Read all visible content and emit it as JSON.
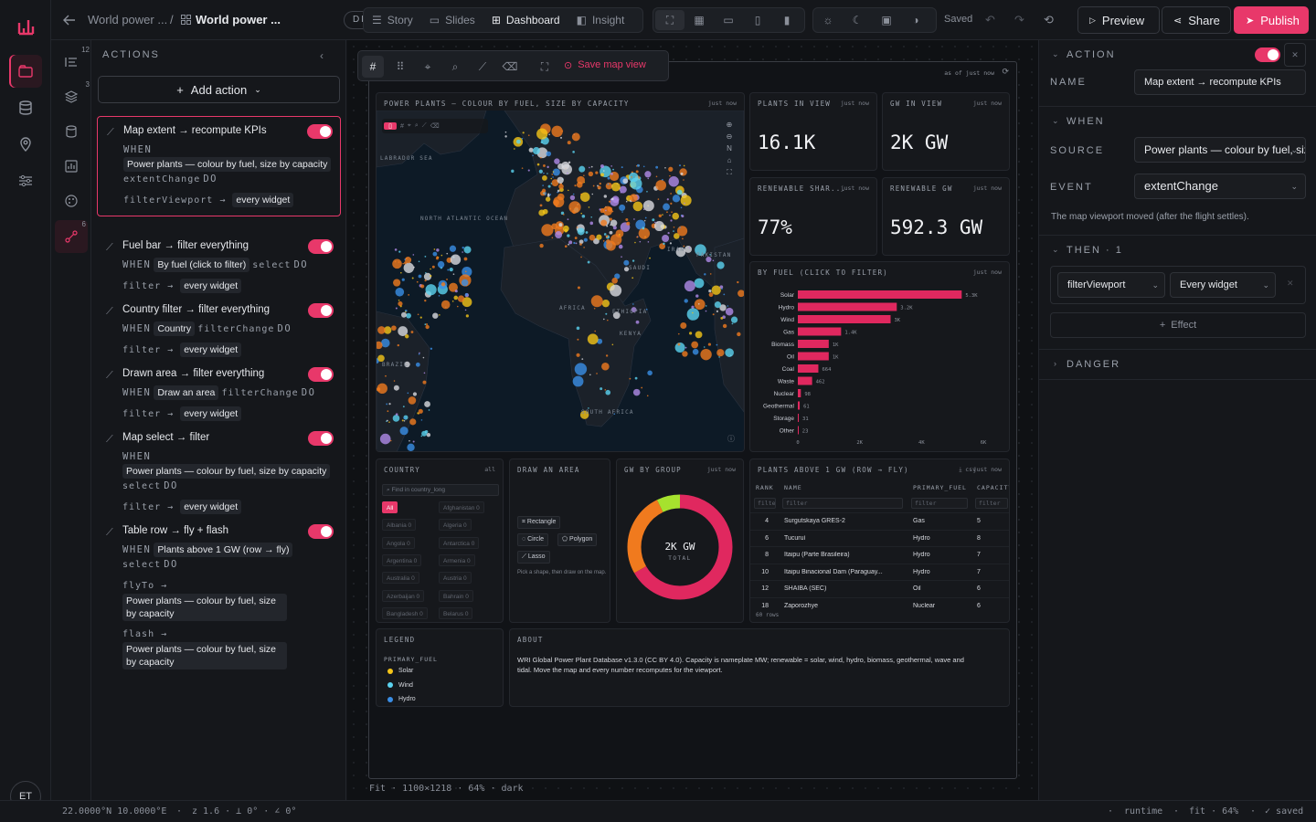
{
  "topbar": {
    "back_label": "World power ...",
    "doc_title": "World power ...",
    "status": "DRAFT",
    "views": [
      {
        "label": "Story"
      },
      {
        "label": "Slides"
      },
      {
        "label": "Dashboard",
        "active": true
      },
      {
        "label": "Insight"
      }
    ],
    "saved": "Saved",
    "preview": "Preview",
    "share": "Share",
    "publish": "Publish"
  },
  "user": {
    "initials": "ET"
  },
  "iconcol": {
    "badge_a": "12",
    "badge_b": "3",
    "badge_c": "6"
  },
  "actions": {
    "header": "ACTIONS",
    "add_label": "Add action",
    "cards": [
      {
        "title": "Map extent → recompute KPIs",
        "when": "WHEN",
        "chip": "Power plants — colour by fuel, size by capacity",
        "event": "extentChange",
        "do": "DO",
        "verb": "filterViewport",
        "target": "every widget"
      },
      {
        "title": "Fuel bar → filter everything",
        "when": "WHEN",
        "chip": "By fuel (click to filter)",
        "event": "select",
        "do": "DO",
        "verb": "filter",
        "target": "every widget"
      },
      {
        "title": "Country filter → filter everything",
        "when": "WHEN",
        "chip": "Country",
        "event": "filterChange",
        "do": "DO",
        "verb": "filter",
        "target": "every widget"
      },
      {
        "title": "Drawn area → filter everything",
        "when": "WHEN",
        "chip": "Draw an area",
        "event": "filterChange",
        "do": "DO",
        "verb": "filter",
        "target": "every widget"
      },
      {
        "title": "Map select → filter",
        "when": "WHEN",
        "chip": "Power plants — colour by fuel, size by capacity",
        "event": "select",
        "do": "DO",
        "verb": "filter",
        "target": "every widget"
      },
      {
        "title": "Table row → fly + flash",
        "when": "WHEN",
        "chip": "Plants above 1 GW (row → fly)",
        "event": "select",
        "do": "DO",
        "verb": "flyTo",
        "target": "Power plants — colour by fuel, size by capacity",
        "verb2": "flash",
        "target2": "Power plants — colour by fuel, size by capacity"
      }
    ]
  },
  "canvas": {
    "save_map_view": "Save map view",
    "as_of": "as of just now",
    "footer": "Fit · 1100×1218 · 64% · dark"
  },
  "map": {
    "title": "POWER PLANTS — COLOUR BY FUEL, SIZE BY CAPACITY",
    "updated": "just now",
    "labels": [
      "LABRADOR SEA",
      "NORTH ATLANTIC OCEAN",
      "AFRICA",
      "ETHIOPIA",
      "KENYA",
      "BRAZIL",
      "SOUTH AFRICA",
      "IRAN",
      "SAUDI",
      "PAKISTAN"
    ]
  },
  "kpis": [
    {
      "label": "PLANTS IN VIEW",
      "updated": "just now",
      "value": "16.1K"
    },
    {
      "label": "GW IN VIEW",
      "updated": "just now",
      "value": "2K GW"
    },
    {
      "label": "RENEWABLE SHAR...",
      "updated": "just now",
      "value": "77%"
    },
    {
      "label": "RENEWABLE GW",
      "updated": "just now",
      "value": "592.3 GW"
    }
  ],
  "fuelchart": {
    "title": "BY FUEL (CLICK TO FILTER)",
    "updated": "just now"
  },
  "chart_data": {
    "type": "bar",
    "orientation": "horizontal",
    "title": "BY FUEL (CLICK TO FILTER)",
    "categories": [
      "Solar",
      "Hydro",
      "Wind",
      "Gas",
      "Biomass",
      "Oil",
      "Coal",
      "Waste",
      "Nuclear",
      "Geothermal",
      "Storage",
      "Other"
    ],
    "values": [
      5300,
      3200,
      3000,
      1400,
      1000,
      1000,
      664,
      462,
      98,
      61,
      31,
      23
    ],
    "value_labels": [
      "5.3K",
      "3.2K",
      "3K",
      "1.4K",
      "1K",
      "1K",
      "664",
      "462",
      "98",
      "61",
      "31",
      "23"
    ],
    "xticks": [
      0,
      2000,
      4000,
      6000
    ],
    "xtick_labels": [
      "0",
      "2K",
      "4K",
      "6K"
    ],
    "xlim": [
      0,
      6000
    ],
    "color": "#e0285f"
  },
  "country": {
    "title": "COUNTRY",
    "all_tag": "all",
    "placeholder": "Find in country_long",
    "items": [
      {
        "name": "All",
        "count": ""
      },
      {
        "name": "Afghanistan",
        "count": "0"
      },
      {
        "name": "Albania",
        "count": "0"
      },
      {
        "name": "Algeria",
        "count": "0"
      },
      {
        "name": "Angola",
        "count": "0"
      },
      {
        "name": "Antarctica",
        "count": "0"
      },
      {
        "name": "Argentina",
        "count": "0"
      },
      {
        "name": "Armenia",
        "count": "0"
      },
      {
        "name": "Australia",
        "count": "0"
      },
      {
        "name": "Austria",
        "count": "0"
      },
      {
        "name": "Azerbaijan",
        "count": "0"
      },
      {
        "name": "Bahrain",
        "count": "0"
      },
      {
        "name": "Bangladesh",
        "count": "0"
      },
      {
        "name": "Belarus",
        "count": "0"
      }
    ]
  },
  "draw": {
    "title": "DRAW AN AREA",
    "rect": "Rectangle",
    "circle": "Circle",
    "polygon": "Polygon",
    "lasso": "Lasso",
    "hint": "Pick a shape, then draw on the map."
  },
  "donut": {
    "title": "GW BY GROUP",
    "updated": "just now",
    "value": "2K GW",
    "sub": "TOTAL"
  },
  "table": {
    "title": "PLANTS ABOVE 1 GW (ROW → FLY)",
    "csv": "csv",
    "updated": "just now",
    "headers": [
      "RANK",
      "NAME",
      "PRIMARY_FUEL",
      "CAPACITY"
    ],
    "filter_placeholder": "filter",
    "rows": [
      [
        "4",
        "Surgutskaya GRES-2",
        "Gas",
        "5"
      ],
      [
        "6",
        "Tucuruí",
        "Hydro",
        "8"
      ],
      [
        "8",
        "Itaipu (Parte Brasileira)",
        "Hydro",
        "7"
      ],
      [
        "10",
        "Itaipu Binacional Dam (Paraguay...",
        "Hydro",
        "7"
      ],
      [
        "12",
        "SHAIBA (SEC)",
        "Oil",
        "6"
      ],
      [
        "18",
        "Zaporozhye",
        "Nuclear",
        "6"
      ]
    ],
    "footer": "60 rows"
  },
  "legend": {
    "title": "LEGEND",
    "sub": "PRIMARY_FUEL",
    "items": [
      {
        "label": "Solar",
        "color": "#f5c518"
      },
      {
        "label": "Wind",
        "color": "#5bd3f0"
      },
      {
        "label": "Hydro",
        "color": "#3a8ee6"
      }
    ]
  },
  "about": {
    "title": "ABOUT",
    "text": "WRI Global Power Plant Database v1.3.0 (CC BY 4.0). Capacity is nameplate MW; renewable = solar, wind, hydro, biomass, geothermal, wave and tidal. Move the map and every number recomputes for the viewport."
  },
  "rpanel": {
    "action_title": "ACTION",
    "name_label": "NAME",
    "name_value": "Map extent → recompute KPIs",
    "when_title": "WHEN",
    "source_label": "SOURCE",
    "source_value": "Power plants — colour by fuel, size by capacity",
    "event_label": "EVENT",
    "event_value": "extentChange",
    "event_hint": "The map viewport moved (after the flight settles).",
    "then_title": "THEN · 1",
    "then_verb": "filterViewport",
    "then_target": "Every widget",
    "effect": "Effect",
    "danger_title": "DANGER"
  },
  "statusbar": {
    "coords": "22.0000°N 10.0000°E",
    "zoom": "z 1.6 · ⊥ 0° · ∠ 0°",
    "runtime": "runtime",
    "fit": "fit · 64%",
    "saved": "saved"
  }
}
